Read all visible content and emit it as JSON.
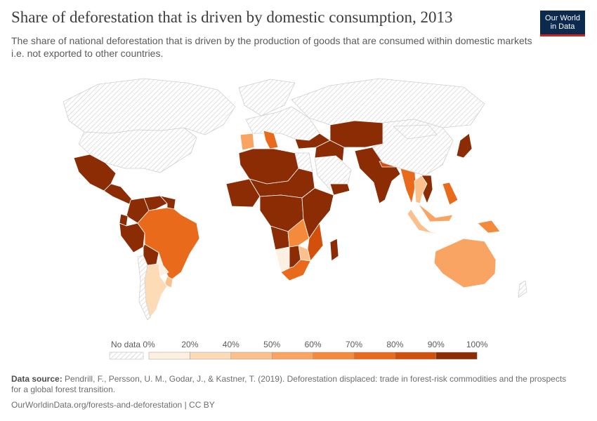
{
  "chart_data": {
    "type": "choropleth",
    "title": "Share of deforestation that is driven by domestic consumption, 2013",
    "subtitle": "The share of national deforestation that is driven by the production of goods that are consumed within domestic markets i.e. not exported to other countries.",
    "legend": {
      "no_data_label": "No data",
      "tick_labels": [
        "0%",
        "20%",
        "40%",
        "50%",
        "60%",
        "70%",
        "80%",
        "90%",
        "100%"
      ],
      "bins": [
        {
          "from": 0,
          "to": 20,
          "color": "#fef0e1"
        },
        {
          "from": 20,
          "to": 40,
          "color": "#fddbb7"
        },
        {
          "from": 40,
          "to": 50,
          "color": "#fcc08c"
        },
        {
          "from": 50,
          "to": 60,
          "color": "#f9a463"
        },
        {
          "from": 60,
          "to": 70,
          "color": "#f58a3d"
        },
        {
          "from": 70,
          "to": 80,
          "color": "#ea6a1b"
        },
        {
          "from": 80,
          "to": 90,
          "color": "#d2500c"
        },
        {
          "from": 90,
          "to": 100,
          "color": "#8b2c04"
        }
      ],
      "placement": "bottom"
    },
    "regions": [
      {
        "name": "United States",
        "value": null
      },
      {
        "name": "Canada",
        "value": null
      },
      {
        "name": "Greenland",
        "value": null
      },
      {
        "name": "Mexico",
        "value": 95
      },
      {
        "name": "Central America",
        "value": 95
      },
      {
        "name": "Colombia",
        "value": 95
      },
      {
        "name": "Venezuela",
        "value": 95
      },
      {
        "name": "Guianas",
        "value": 95
      },
      {
        "name": "Ecuador",
        "value": 95
      },
      {
        "name": "Peru",
        "value": 95
      },
      {
        "name": "Brazil",
        "value": 75
      },
      {
        "name": "Bolivia",
        "value": 95
      },
      {
        "name": "Paraguay",
        "value": 15
      },
      {
        "name": "Uruguay",
        "value": 45
      },
      {
        "name": "Argentina",
        "value": 35
      },
      {
        "name": "Chile",
        "value": null
      },
      {
        "name": "Russia",
        "value": null
      },
      {
        "name": "Europe",
        "value": null
      },
      {
        "name": "Spain",
        "value": 55
      },
      {
        "name": "Italy",
        "value": 75
      },
      {
        "name": "North Africa",
        "value": 95
      },
      {
        "name": "Egypt",
        "value": null
      },
      {
        "name": "Arabian Peninsula",
        "value": null
      },
      {
        "name": "Yemen",
        "value": 95
      },
      {
        "name": "Sahel",
        "value": 95
      },
      {
        "name": "West Africa",
        "value": 95
      },
      {
        "name": "Central Africa",
        "value": 95
      },
      {
        "name": "East Africa",
        "value": 95
      },
      {
        "name": "Angola",
        "value": 95
      },
      {
        "name": "Zambia",
        "value": 65
      },
      {
        "name": "Mozambique",
        "value": 85
      },
      {
        "name": "Zimbabwe",
        "value": 45
      },
      {
        "name": "Namibia",
        "value": 15
      },
      {
        "name": "Botswana",
        "value": 95
      },
      {
        "name": "South Africa",
        "value": 75
      },
      {
        "name": "Madagascar",
        "value": 95
      },
      {
        "name": "Turkey",
        "value": 95
      },
      {
        "name": "Middle East",
        "value": 95
      },
      {
        "name": "Central Asia",
        "value": 95
      },
      {
        "name": "India",
        "value": 95
      },
      {
        "name": "Nepal",
        "value": 85
      },
      {
        "name": "Myanmar",
        "value": 75
      },
      {
        "name": "Thailand",
        "value": 45
      },
      {
        "name": "Vietnam",
        "value": 95
      },
      {
        "name": "China",
        "value": null
      },
      {
        "name": "Mongolia",
        "value": null
      },
      {
        "name": "Japan",
        "value": 95
      },
      {
        "name": "Philippines",
        "value": 75
      },
      {
        "name": "Malaysia",
        "value": 55
      },
      {
        "name": "Sumatra",
        "value": 45
      },
      {
        "name": "Papua New Guinea",
        "value": 65
      },
      {
        "name": "Australia",
        "value": 55
      },
      {
        "name": "New Zealand",
        "value": null
      }
    ]
  },
  "logo": {
    "line1": "Our World",
    "line2": "in Data"
  },
  "source": {
    "label": "Data source:",
    "text": "Pendrill, F., Persson, U. M., Godar, J., & Kastner, T. (2019). Deforestation displaced: trade in forest-risk commodities and the prospects for a global forest transition."
  },
  "footer": {
    "link": "OurWorldinData.org/forests-and-deforestation",
    "license": "CC BY"
  },
  "colors": {
    "no_data_stroke": "#cfcfcf",
    "border": "#ffffff",
    "brand_navy": "#0b2a4e",
    "brand_red": "#ce261e"
  }
}
